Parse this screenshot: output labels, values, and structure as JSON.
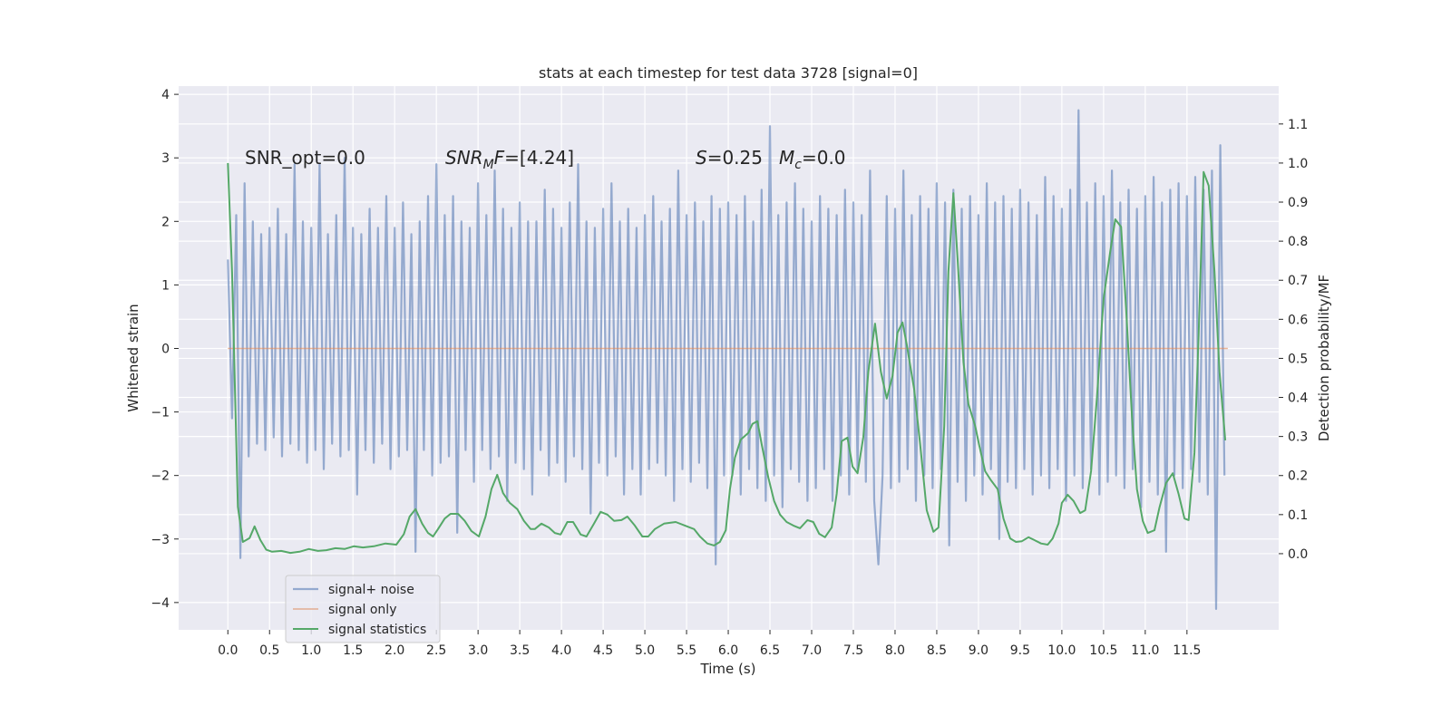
{
  "chart_data": {
    "type": "line",
    "title": "stats at each timestep for test data 3728 [signal=0]",
    "xlabel": "Time (s)",
    "ylabel": "Whitened strain",
    "y2label": "Detection probability/MF",
    "annotations": [
      [
        {
          "text": "SNR_opt=0.0"
        }
      ],
      [
        {
          "text": "SNR",
          "italic": true
        },
        {
          "text": "M",
          "italic": true,
          "sub": true
        },
        {
          "text": "F",
          "italic": true
        },
        {
          "text": "=[4.24]"
        }
      ],
      [
        {
          "text": "S",
          "italic": true
        },
        {
          "text": "=0.25"
        }
      ],
      [
        {
          "text": "M",
          "italic": true
        },
        {
          "text": "c",
          "italic": true,
          "sub": true
        },
        {
          "text": "=0.0"
        }
      ]
    ],
    "xlim": [
      -0.59,
      12.6
    ],
    "ylim": [
      -4.43,
      4.13
    ],
    "y2lim": [
      -0.195,
      1.197
    ],
    "xticks": [
      {
        "value": 0,
        "label": "0.0"
      },
      0.5,
      {
        "value": 1,
        "label": "1.0"
      },
      1.5,
      {
        "value": 2,
        "label": "2.0"
      },
      2.5,
      {
        "value": 3,
        "label": "3.0"
      },
      3.5,
      {
        "value": 4,
        "label": "4.0"
      },
      4.5,
      {
        "value": 5,
        "label": "5.0"
      },
      5.5,
      {
        "value": 6,
        "label": "6.0"
      },
      6.5,
      {
        "value": 7,
        "label": "7.0"
      },
      7.5,
      {
        "value": 8,
        "label": "8.0"
      },
      8.5,
      {
        "value": 9,
        "label": "9.0"
      },
      9.5,
      {
        "value": 10,
        "label": "10.0"
      },
      10.5,
      {
        "value": 11,
        "label": "11.0"
      },
      11.5
    ],
    "yticks": [
      {
        "value": -4,
        "label": "−4"
      },
      {
        "value": -3,
        "label": "−3"
      },
      {
        "value": -2,
        "label": "−2"
      },
      {
        "value": -1,
        "label": "−1"
      },
      0,
      1,
      2,
      3,
      4
    ],
    "y2ticks": [
      {
        "value": 0,
        "label": "0.0"
      },
      0.1,
      0.2,
      0.3,
      0.4,
      0.5,
      0.6,
      0.7,
      0.8,
      0.9,
      {
        "value": 1,
        "label": "1.0"
      },
      1.1
    ],
    "grid": true,
    "legend": "lower left",
    "series": [
      {
        "name": "signal+ noise",
        "color": "#4c72b0",
        "x": [
          0,
          0.05,
          0.1,
          0.15,
          0.2,
          0.25,
          0.3,
          0.35,
          0.4,
          0.45,
          0.5,
          0.55,
          0.6,
          0.65,
          0.7,
          0.75,
          0.8,
          0.85,
          0.9,
          0.95,
          1,
          1.05,
          1.1,
          1.15,
          1.2,
          1.25,
          1.3,
          1.35,
          1.4,
          1.45,
          1.5,
          1.55,
          1.6,
          1.65,
          1.7,
          1.75,
          1.8,
          1.85,
          1.9,
          1.95,
          2,
          2.05,
          2.1,
          2.15,
          2.2,
          2.25,
          2.3,
          2.35,
          2.4,
          2.45,
          2.5,
          2.55,
          2.6,
          2.65,
          2.7,
          2.75,
          2.8,
          2.85,
          2.9,
          2.95,
          3,
          3.05,
          3.1,
          3.15,
          3.2,
          3.25,
          3.3,
          3.35,
          3.4,
          3.45,
          3.5,
          3.55,
          3.6,
          3.65,
          3.7,
          3.75,
          3.8,
          3.85,
          3.9,
          3.95,
          4,
          4.05,
          4.1,
          4.15,
          4.2,
          4.25,
          4.3,
          4.35,
          4.4,
          4.45,
          4.5,
          4.55,
          4.6,
          4.65,
          4.7,
          4.75,
          4.8,
          4.85,
          4.9,
          4.95,
          5,
          5.05,
          5.1,
          5.15,
          5.2,
          5.25,
          5.3,
          5.35,
          5.4,
          5.45,
          5.5,
          5.55,
          5.6,
          5.65,
          5.7,
          5.75,
          5.8,
          5.85,
          5.9,
          5.95,
          6,
          6.05,
          6.1,
          6.15,
          6.2,
          6.25,
          6.3,
          6.35,
          6.4,
          6.45,
          6.5,
          6.55,
          6.6,
          6.65,
          6.7,
          6.75,
          6.8,
          6.85,
          6.9,
          6.95,
          7,
          7.05,
          7.1,
          7.15,
          7.2,
          7.25,
          7.3,
          7.35,
          7.4,
          7.45,
          7.5,
          7.55,
          7.6,
          7.65,
          7.7,
          7.75,
          7.8,
          7.85,
          7.9,
          7.95,
          8,
          8.05,
          8.1,
          8.15,
          8.2,
          8.25,
          8.3,
          8.35,
          8.4,
          8.45,
          8.5,
          8.55,
          8.6,
          8.65,
          8.7,
          8.75,
          8.8,
          8.85,
          8.9,
          8.95,
          9,
          9.05,
          9.1,
          9.15,
          9.2,
          9.25,
          9.3,
          9.35,
          9.4,
          9.45,
          9.5,
          9.55,
          9.6,
          9.65,
          9.7,
          9.75,
          9.8,
          9.85,
          9.9,
          9.95,
          10,
          10.05,
          10.1,
          10.15,
          10.2,
          10.25,
          10.3,
          10.35,
          10.4,
          10.45,
          10.5,
          10.55,
          10.6,
          10.65,
          10.7,
          10.75,
          10.8,
          10.85,
          10.9,
          10.95,
          11,
          11.05,
          11.1,
          11.15,
          11.2,
          11.25,
          11.3,
          11.35,
          11.4,
          11.45,
          11.5,
          11.55,
          11.6,
          11.65,
          11.7,
          11.75,
          11.8,
          11.85,
          11.9,
          11.95
        ],
        "values": [
          1.4,
          -1.1,
          2.1,
          -3.3,
          2.6,
          -1.7,
          2.0,
          -1.5,
          1.8,
          -1.6,
          1.9,
          -1.4,
          2.2,
          -1.7,
          1.8,
          -1.5,
          2.9,
          -1.6,
          2.0,
          -1.8,
          1.9,
          -1.6,
          2.9,
          -1.9,
          1.8,
          -1.5,
          2.1,
          -1.7,
          3.0,
          -1.6,
          1.9,
          -2.3,
          1.8,
          -1.6,
          2.2,
          -1.8,
          1.9,
          -1.5,
          2.4,
          -1.9,
          1.9,
          -1.7,
          2.3,
          -1.6,
          1.8,
          -3.2,
          2.0,
          -1.6,
          2.4,
          -2.0,
          2.9,
          -1.8,
          2.1,
          -1.7,
          2.4,
          -2.9,
          2.0,
          -1.6,
          1.9,
          -2.1,
          2.6,
          -1.6,
          2.1,
          -1.9,
          2.8,
          -1.7,
          2.2,
          -2.4,
          1.9,
          -1.8,
          2.3,
          -1.9,
          2.0,
          -2.3,
          2.0,
          -1.6,
          2.5,
          -2.0,
          2.2,
          -1.8,
          1.9,
          -2.1,
          2.3,
          -1.7,
          2.9,
          -1.9,
          2.0,
          -2.6,
          1.9,
          -1.8,
          2.2,
          -2.0,
          2.6,
          -1.7,
          2.0,
          -2.3,
          2.2,
          -1.9,
          1.9,
          -2.3,
          2.1,
          -1.9,
          2.4,
          -1.8,
          2.0,
          -2.0,
          2.2,
          -2.4,
          2.8,
          -1.9,
          2.1,
          -2.1,
          2.3,
          -1.8,
          2.0,
          -2.2,
          2.4,
          -3.4,
          2.2,
          -2.0,
          2.3,
          -2.0,
          2.1,
          -2.3,
          2.4,
          -1.9,
          2.0,
          -2.2,
          2.5,
          -2.4,
          3.5,
          -2.0,
          2.1,
          -2.5,
          2.3,
          -1.9,
          2.6,
          -2.1,
          2.2,
          -2.4,
          2.0,
          -2.2,
          2.4,
          -1.9,
          2.2,
          -2.4,
          2.1,
          -2.0,
          2.5,
          -2.3,
          2.3,
          -1.9,
          2.1,
          -2.1,
          2.8,
          -2.4,
          -3.4,
          -2.0,
          2.4,
          -2.2,
          2.2,
          -2.1,
          2.8,
          -1.9,
          2.1,
          -2.4,
          2.4,
          -2.0,
          2.2,
          -2.2,
          2.6,
          -1.9,
          2.3,
          -3.1,
          2.5,
          -2.1,
          2.2,
          -2.4,
          2.4,
          -2.0,
          2.1,
          -2.3,
          2.6,
          -1.9,
          2.3,
          -3.0,
          2.4,
          -2.1,
          2.2,
          -2.2,
          2.5,
          -1.9,
          2.3,
          -2.3,
          2.1,
          -2.0,
          2.7,
          -2.2,
          2.4,
          -1.9,
          2.2,
          -2.4,
          2.5,
          -2.0,
          3.75,
          -2.2,
          2.3,
          -1.9,
          2.6,
          -2.3,
          2.4,
          -2.1,
          2.8,
          -2.0,
          2.3,
          -2.2,
          2.5,
          -1.9,
          2.2,
          -2.5,
          2.4,
          -2.1,
          2.7,
          -2.3,
          2.3,
          -3.2,
          2.5,
          -2.0,
          2.6,
          -2.2,
          2.4,
          -1.9,
          2.7,
          -2.1,
          2.5,
          -2.3,
          2.8,
          -4.1,
          3.2,
          -2.0
        ]
      },
      {
        "name": "signal only",
        "color": "#dd8452",
        "x": [
          0,
          11.99
        ],
        "values": [
          0,
          0
        ]
      },
      {
        "name": "signal statistics",
        "color": "#55a868",
        "axis": "y2",
        "x": [
          0,
          0.05,
          0.12,
          0.18,
          0.26,
          0.32,
          0.39,
          0.46,
          0.53,
          0.64,
          0.75,
          0.86,
          0.97,
          1.08,
          1.18,
          1.29,
          1.4,
          1.51,
          1.62,
          1.75,
          1.89,
          2.02,
          2.11,
          2.18,
          2.25,
          2.33,
          2.4,
          2.46,
          2.52,
          2.6,
          2.67,
          2.76,
          2.84,
          2.92,
          3.01,
          3.09,
          3.16,
          3.23,
          3.3,
          3.38,
          3.47,
          3.55,
          3.63,
          3.68,
          3.76,
          3.85,
          3.92,
          3.99,
          4.07,
          4.14,
          4.23,
          4.3,
          4.39,
          4.47,
          4.55,
          4.63,
          4.72,
          4.79,
          4.88,
          4.97,
          5.04,
          5.12,
          5.23,
          5.37,
          5.48,
          5.59,
          5.66,
          5.75,
          5.83,
          5.9,
          5.97,
          6.02,
          6.08,
          6.15,
          6.24,
          6.29,
          6.35,
          6.4,
          6.48,
          6.55,
          6.62,
          6.7,
          6.78,
          6.86,
          6.95,
          7.02,
          7.09,
          7.16,
          7.24,
          7.3,
          7.36,
          7.43,
          7.49,
          7.55,
          7.62,
          7.68,
          7.76,
          7.83,
          7.9,
          7.97,
          8.03,
          8.09,
          8.14,
          8.23,
          8.3,
          8.38,
          8.46,
          8.52,
          8.59,
          8.64,
          8.7,
          8.75,
          8.82,
          8.88,
          8.96,
          9.01,
          9.08,
          9.15,
          9.23,
          9.3,
          9.38,
          9.45,
          9.52,
          9.6,
          9.67,
          9.75,
          9.83,
          9.89,
          9.96,
          10,
          10.07,
          10.14,
          10.22,
          10.28,
          10.35,
          10.42,
          10.5,
          10.58,
          10.64,
          10.71,
          10.77,
          10.84,
          10.9,
          10.97,
          11.03,
          11.11,
          11.17,
          11.25,
          11.33,
          11.4,
          11.47,
          11.52,
          11.59,
          11.64,
          11.7,
          11.76,
          11.83,
          11.89,
          11.96
        ],
        "values": [
          1.0,
          0.72,
          0.12,
          0.03,
          0.04,
          0.07,
          0.035,
          0.01,
          0.005,
          0.007,
          0.002,
          0.005,
          0.012,
          0.007,
          0.009,
          0.014,
          0.012,
          0.019,
          0.016,
          0.019,
          0.026,
          0.023,
          0.05,
          0.095,
          0.114,
          0.077,
          0.053,
          0.044,
          0.063,
          0.09,
          0.102,
          0.102,
          0.084,
          0.058,
          0.044,
          0.095,
          0.165,
          0.202,
          0.155,
          0.13,
          0.114,
          0.084,
          0.063,
          0.063,
          0.077,
          0.067,
          0.053,
          0.049,
          0.081,
          0.081,
          0.049,
          0.044,
          0.077,
          0.107,
          0.1,
          0.084,
          0.086,
          0.095,
          0.072,
          0.044,
          0.044,
          0.063,
          0.077,
          0.081,
          0.072,
          0.063,
          0.044,
          0.026,
          0.021,
          0.03,
          0.06,
          0.165,
          0.246,
          0.292,
          0.309,
          0.332,
          0.339,
          0.281,
          0.195,
          0.135,
          0.1,
          0.081,
          0.072,
          0.065,
          0.086,
          0.081,
          0.051,
          0.042,
          0.067,
          0.153,
          0.288,
          0.297,
          0.223,
          0.206,
          0.299,
          0.466,
          0.589,
          0.466,
          0.397,
          0.455,
          0.566,
          0.592,
          0.536,
          0.42,
          0.281,
          0.111,
          0.056,
          0.067,
          0.327,
          0.722,
          0.923,
          0.756,
          0.49,
          0.383,
          0.327,
          0.276,
          0.211,
          0.188,
          0.165,
          0.09,
          0.039,
          0.03,
          0.032,
          0.042,
          0.035,
          0.026,
          0.023,
          0.039,
          0.077,
          0.13,
          0.151,
          0.135,
          0.104,
          0.111,
          0.211,
          0.397,
          0.652,
          0.773,
          0.856,
          0.837,
          0.629,
          0.355,
          0.165,
          0.084,
          0.053,
          0.06,
          0.118,
          0.181,
          0.206,
          0.153,
          0.09,
          0.086,
          0.258,
          0.559,
          0.977,
          0.942,
          0.722,
          0.466,
          0.29
        ]
      }
    ]
  }
}
